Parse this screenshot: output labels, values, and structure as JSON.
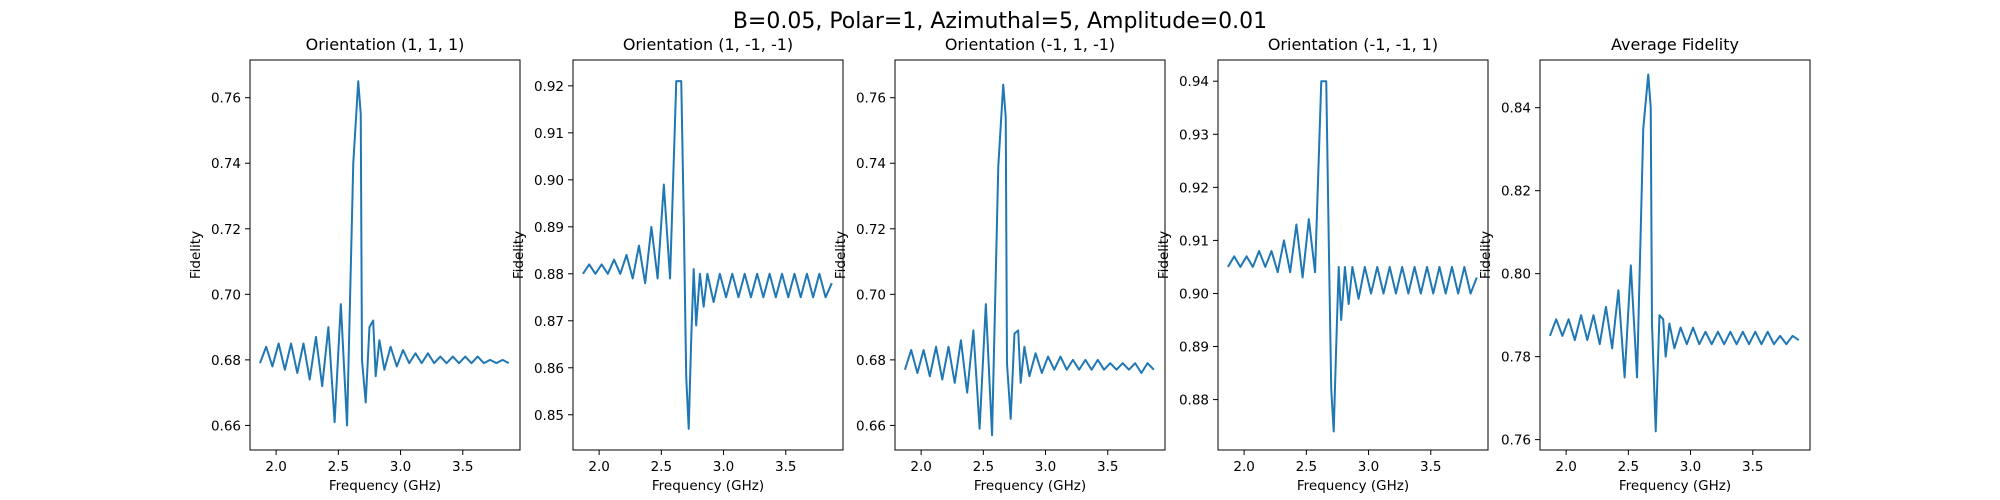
{
  "figure": {
    "suptitle": "B=0.05, Polar=1, Azimuthal=5, Amplitude=0.01",
    "line_color": "#1f77b4"
  },
  "chart_data": [
    {
      "type": "line",
      "title": "Orientation (1, 1, 1)",
      "xlabel": "Frequency (GHz)",
      "ylabel": "Fidelity",
      "xlim": [
        1.79,
        3.96
      ],
      "ylim": [
        0.6525,
        0.7715
      ],
      "xticks": [
        2.0,
        2.5,
        3.0,
        3.5
      ],
      "xtick_labels": [
        "2.0",
        "2.5",
        "3.0",
        "3.5"
      ],
      "yticks": [
        0.66,
        0.68,
        0.7,
        0.72,
        0.74,
        0.76
      ],
      "ytick_labels": [
        "0.66",
        "0.68",
        "0.70",
        "0.72",
        "0.74",
        "0.76"
      ],
      "grid": false,
      "series": [
        {
          "x": [
            1.87,
            1.92,
            1.97,
            2.02,
            2.07,
            2.12,
            2.17,
            2.22,
            2.27,
            2.32,
            2.37,
            2.42,
            2.47,
            2.52,
            2.57,
            2.62,
            2.66,
            2.68,
            2.69,
            2.72,
            2.75,
            2.78,
            2.8,
            2.83,
            2.87,
            2.92,
            2.97,
            3.02,
            3.07,
            3.12,
            3.17,
            3.22,
            3.27,
            3.32,
            3.37,
            3.42,
            3.47,
            3.52,
            3.57,
            3.62,
            3.67,
            3.72,
            3.77,
            3.82,
            3.87
          ],
          "y": [
            0.679,
            0.684,
            0.678,
            0.685,
            0.677,
            0.685,
            0.676,
            0.685,
            0.674,
            0.687,
            0.672,
            0.69,
            0.661,
            0.697,
            0.66,
            0.74,
            0.765,
            0.755,
            0.68,
            0.667,
            0.69,
            0.692,
            0.675,
            0.686,
            0.677,
            0.684,
            0.678,
            0.683,
            0.679,
            0.682,
            0.679,
            0.682,
            0.679,
            0.681,
            0.679,
            0.681,
            0.679,
            0.681,
            0.679,
            0.681,
            0.679,
            0.68,
            0.679,
            0.68,
            0.679
          ]
        }
      ]
    },
    {
      "type": "line",
      "title": "Orientation (1, -1, -1)",
      "xlabel": "Frequency (GHz)",
      "ylabel": "Fidelity",
      "xlim": [
        1.79,
        3.96
      ],
      "ylim": [
        0.8425,
        0.9255
      ],
      "xticks": [
        2.0,
        2.5,
        3.0,
        3.5
      ],
      "xtick_labels": [
        "2.0",
        "2.5",
        "3.0",
        "3.5"
      ],
      "yticks": [
        0.85,
        0.86,
        0.87,
        0.88,
        0.89,
        0.9,
        0.91,
        0.92
      ],
      "ytick_labels": [
        "0.85",
        "0.86",
        "0.87",
        "0.88",
        "0.89",
        "0.90",
        "0.91",
        "0.92"
      ],
      "grid": false,
      "series": [
        {
          "x": [
            1.87,
            1.92,
            1.97,
            2.02,
            2.07,
            2.12,
            2.17,
            2.22,
            2.27,
            2.32,
            2.37,
            2.42,
            2.47,
            2.52,
            2.57,
            2.62,
            2.66,
            2.68,
            2.7,
            2.72,
            2.74,
            2.76,
            2.78,
            2.81,
            2.84,
            2.87,
            2.92,
            2.97,
            3.02,
            3.07,
            3.12,
            3.17,
            3.22,
            3.27,
            3.32,
            3.37,
            3.42,
            3.47,
            3.52,
            3.57,
            3.62,
            3.67,
            3.72,
            3.77,
            3.82,
            3.87
          ],
          "y": [
            0.88,
            0.882,
            0.88,
            0.882,
            0.88,
            0.883,
            0.88,
            0.884,
            0.879,
            0.886,
            0.878,
            0.89,
            0.879,
            0.899,
            0.879,
            0.921,
            0.921,
            0.892,
            0.858,
            0.847,
            0.866,
            0.881,
            0.869,
            0.88,
            0.873,
            0.88,
            0.874,
            0.88,
            0.875,
            0.88,
            0.875,
            0.88,
            0.875,
            0.88,
            0.875,
            0.88,
            0.875,
            0.88,
            0.875,
            0.88,
            0.875,
            0.88,
            0.875,
            0.88,
            0.875,
            0.878
          ]
        }
      ]
    },
    {
      "type": "line",
      "title": "Orientation (-1, 1, -1)",
      "xlabel": "Frequency (GHz)",
      "ylabel": "Fidelity",
      "xlim": [
        1.79,
        3.96
      ],
      "ylim": [
        0.6525,
        0.7715
      ],
      "xticks": [
        2.0,
        2.5,
        3.0,
        3.5
      ],
      "xtick_labels": [
        "2.0",
        "2.5",
        "3.0",
        "3.5"
      ],
      "yticks": [
        0.66,
        0.68,
        0.7,
        0.72,
        0.74,
        0.76
      ],
      "ytick_labels": [
        "0.66",
        "0.68",
        "0.70",
        "0.72",
        "0.74",
        "0.76"
      ],
      "grid": false,
      "series": [
        {
          "x": [
            1.87,
            1.92,
            1.97,
            2.02,
            2.07,
            2.12,
            2.17,
            2.22,
            2.27,
            2.32,
            2.37,
            2.42,
            2.47,
            2.52,
            2.57,
            2.62,
            2.66,
            2.68,
            2.69,
            2.72,
            2.75,
            2.78,
            2.8,
            2.83,
            2.87,
            2.92,
            2.97,
            3.02,
            3.07,
            3.12,
            3.17,
            3.22,
            3.27,
            3.32,
            3.37,
            3.42,
            3.47,
            3.52,
            3.57,
            3.62,
            3.67,
            3.72,
            3.77,
            3.82,
            3.87
          ],
          "y": [
            0.677,
            0.683,
            0.676,
            0.683,
            0.675,
            0.684,
            0.674,
            0.684,
            0.673,
            0.686,
            0.67,
            0.689,
            0.659,
            0.697,
            0.657,
            0.739,
            0.764,
            0.754,
            0.679,
            0.662,
            0.688,
            0.689,
            0.673,
            0.684,
            0.675,
            0.682,
            0.676,
            0.681,
            0.677,
            0.681,
            0.677,
            0.68,
            0.677,
            0.68,
            0.677,
            0.68,
            0.677,
            0.679,
            0.677,
            0.679,
            0.677,
            0.679,
            0.676,
            0.679,
            0.677
          ]
        }
      ]
    },
    {
      "type": "line",
      "title": "Orientation (-1, -1, 1)",
      "xlabel": "Frequency (GHz)",
      "ylabel": "Fidelity",
      "xlim": [
        1.79,
        3.96
      ],
      "ylim": [
        0.8705,
        0.944
      ],
      "xticks": [
        2.0,
        2.5,
        3.0,
        3.5
      ],
      "xtick_labels": [
        "2.0",
        "2.5",
        "3.0",
        "3.5"
      ],
      "yticks": [
        0.88,
        0.89,
        0.9,
        0.91,
        0.92,
        0.93,
        0.94
      ],
      "ytick_labels": [
        "0.88",
        "0.89",
        "0.90",
        "0.91",
        "0.92",
        "0.93",
        "0.94"
      ],
      "grid": false,
      "series": [
        {
          "x": [
            1.87,
            1.92,
            1.97,
            2.02,
            2.07,
            2.12,
            2.17,
            2.22,
            2.27,
            2.32,
            2.37,
            2.42,
            2.47,
            2.52,
            2.57,
            2.62,
            2.66,
            2.68,
            2.7,
            2.72,
            2.74,
            2.76,
            2.78,
            2.81,
            2.84,
            2.87,
            2.92,
            2.97,
            3.02,
            3.07,
            3.12,
            3.17,
            3.22,
            3.27,
            3.32,
            3.37,
            3.42,
            3.47,
            3.52,
            3.57,
            3.62,
            3.67,
            3.72,
            3.77,
            3.82,
            3.87
          ],
          "y": [
            0.905,
            0.907,
            0.905,
            0.907,
            0.905,
            0.908,
            0.905,
            0.908,
            0.904,
            0.91,
            0.904,
            0.913,
            0.903,
            0.914,
            0.904,
            0.94,
            0.94,
            0.91,
            0.882,
            0.874,
            0.89,
            0.905,
            0.895,
            0.905,
            0.898,
            0.905,
            0.899,
            0.905,
            0.9,
            0.905,
            0.9,
            0.905,
            0.9,
            0.905,
            0.9,
            0.905,
            0.9,
            0.905,
            0.9,
            0.905,
            0.9,
            0.905,
            0.9,
            0.905,
            0.9,
            0.903
          ]
        }
      ]
    },
    {
      "type": "line",
      "title": "Average Fidelity",
      "xlabel": "Frequency (GHz)",
      "ylabel": "Fidelity",
      "xlim": [
        1.79,
        3.96
      ],
      "ylim": [
        0.7575,
        0.8515
      ],
      "xticks": [
        2.0,
        2.5,
        3.0,
        3.5
      ],
      "xtick_labels": [
        "2.0",
        "2.5",
        "3.0",
        "3.5"
      ],
      "yticks": [
        0.76,
        0.78,
        0.8,
        0.82,
        0.84
      ],
      "ytick_labels": [
        "0.76",
        "0.78",
        "0.80",
        "0.82",
        "0.84"
      ],
      "grid": false,
      "series": [
        {
          "x": [
            1.87,
            1.92,
            1.97,
            2.02,
            2.07,
            2.12,
            2.17,
            2.22,
            2.27,
            2.32,
            2.37,
            2.42,
            2.47,
            2.52,
            2.57,
            2.62,
            2.66,
            2.68,
            2.69,
            2.72,
            2.75,
            2.78,
            2.8,
            2.83,
            2.87,
            2.92,
            2.97,
            3.02,
            3.07,
            3.12,
            3.17,
            3.22,
            3.27,
            3.32,
            3.37,
            3.42,
            3.47,
            3.52,
            3.57,
            3.62,
            3.67,
            3.72,
            3.77,
            3.82,
            3.87
          ],
          "y": [
            0.785,
            0.789,
            0.785,
            0.789,
            0.784,
            0.79,
            0.784,
            0.79,
            0.783,
            0.792,
            0.782,
            0.796,
            0.775,
            0.802,
            0.775,
            0.835,
            0.848,
            0.84,
            0.788,
            0.762,
            0.79,
            0.789,
            0.78,
            0.788,
            0.782,
            0.787,
            0.783,
            0.787,
            0.783,
            0.786,
            0.783,
            0.786,
            0.783,
            0.786,
            0.783,
            0.786,
            0.783,
            0.786,
            0.783,
            0.786,
            0.783,
            0.785,
            0.783,
            0.785,
            0.784
          ]
        }
      ]
    }
  ]
}
